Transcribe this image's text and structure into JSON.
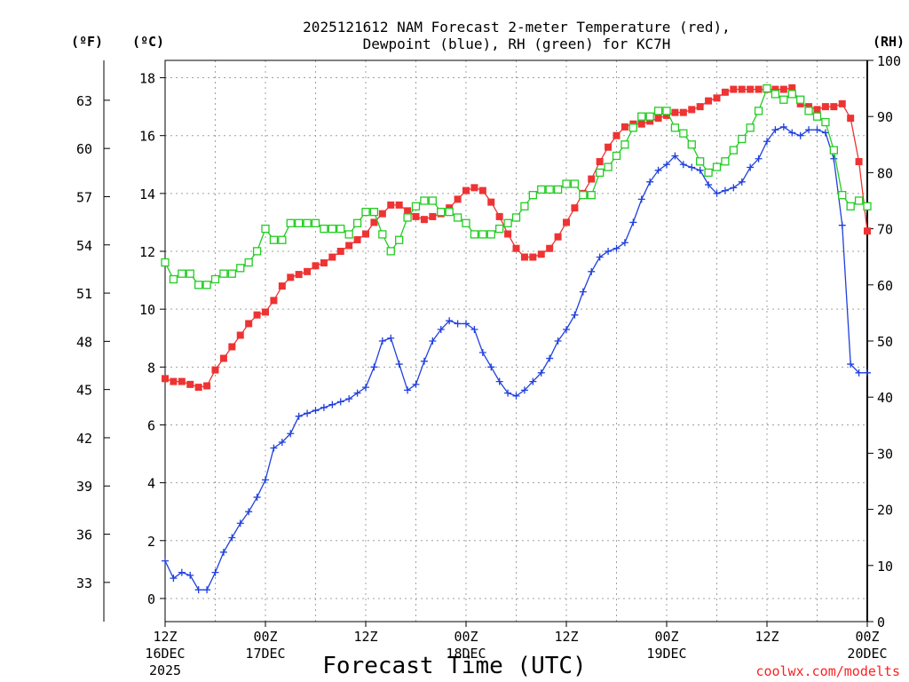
{
  "chart_data": {
    "type": "line",
    "title_line1": "2025121612 NAM Forecast 2-meter Temperature (red),",
    "title_line2": "Dewpoint (blue), RH (green) for KC7H",
    "xlabel": "Forecast Time (UTC)",
    "unit_left_f": "(ºF)",
    "unit_left_c": "(ºC)",
    "unit_right": "(RH)",
    "credit": "coolwx.com/modelts",
    "x_range_hours": [
      0,
      84
    ],
    "x_ticks": [
      {
        "hour": 0,
        "line1": "12Z",
        "line2": "16DEC",
        "line3": "2025"
      },
      {
        "hour": 12,
        "line1": "00Z",
        "line2": "17DEC",
        "line3": ""
      },
      {
        "hour": 24,
        "line1": "12Z",
        "line2": "",
        "line3": ""
      },
      {
        "hour": 36,
        "line1": "00Z",
        "line2": "18DEC",
        "line3": ""
      },
      {
        "hour": 48,
        "line1": "12Z",
        "line2": "",
        "line3": ""
      },
      {
        "hour": 60,
        "line1": "00Z",
        "line2": "19DEC",
        "line3": ""
      },
      {
        "hour": 72,
        "line1": "12Z",
        "line2": "",
        "line3": ""
      },
      {
        "hour": 84,
        "line1": "00Z",
        "line2": "20DEC",
        "line3": ""
      }
    ],
    "y_left_c": {
      "range": [
        -0.8,
        18.6
      ],
      "ticks": [
        0,
        2,
        4,
        6,
        8,
        10,
        12,
        14,
        16,
        18
      ]
    },
    "y_left_f": {
      "ticks": [
        33,
        36,
        39,
        42,
        45,
        48,
        51,
        54,
        57,
        60,
        63
      ]
    },
    "y_right_rh": {
      "range": [
        0,
        100
      ],
      "ticks": [
        0,
        10,
        20,
        30,
        40,
        50,
        60,
        70,
        80,
        90,
        100
      ]
    },
    "grid": true,
    "series": [
      {
        "name": "Temperature (°C)",
        "color": "#ee3333",
        "axis": "c",
        "marker": "filled-square",
        "x": [
          0,
          1,
          2,
          3,
          4,
          5,
          6,
          7,
          8,
          9,
          10,
          11,
          12,
          13,
          14,
          15,
          16,
          17,
          18,
          19,
          20,
          21,
          22,
          23,
          24,
          25,
          26,
          27,
          28,
          29,
          30,
          31,
          32,
          33,
          34,
          35,
          36,
          37,
          38,
          39,
          40,
          41,
          42,
          43,
          44,
          45,
          46,
          47,
          48,
          49,
          50,
          51,
          52,
          53,
          54,
          55,
          56,
          57,
          58,
          59,
          60,
          61,
          62,
          63,
          64,
          65,
          66,
          67,
          68,
          69,
          70,
          71,
          72,
          73,
          74,
          75,
          76,
          77,
          78,
          79,
          80,
          81,
          82,
          83,
          84
        ],
        "values": [
          7.6,
          7.5,
          7.5,
          7.4,
          7.3,
          7.35,
          7.9,
          8.3,
          8.7,
          9.1,
          9.5,
          9.8,
          9.9,
          10.3,
          10.8,
          11.1,
          11.2,
          11.3,
          11.5,
          11.6,
          11.8,
          12.0,
          12.2,
          12.4,
          12.6,
          13.0,
          13.3,
          13.6,
          13.6,
          13.4,
          13.2,
          13.1,
          13.2,
          13.3,
          13.5,
          13.8,
          14.1,
          14.2,
          14.1,
          13.7,
          13.2,
          12.6,
          12.1,
          11.8,
          11.8,
          11.9,
          12.1,
          12.5,
          13.0,
          13.5,
          14.0,
          14.5,
          15.1,
          15.6,
          16.0,
          16.3,
          16.4,
          16.4,
          16.5,
          16.6,
          16.7,
          16.8,
          16.8,
          16.9,
          17.0,
          17.2,
          17.3,
          17.5,
          17.6,
          17.6,
          17.6,
          17.6,
          17.6,
          17.6,
          17.6,
          17.65,
          17.1,
          17.0,
          16.9,
          17.0,
          17.0,
          17.1,
          16.6,
          15.1,
          12.7
        ]
      },
      {
        "name": "Dewpoint (°C)",
        "color": "#2040dd",
        "axis": "c",
        "marker": "plus",
        "x": [
          0,
          1,
          2,
          3,
          4,
          5,
          6,
          7,
          8,
          9,
          10,
          11,
          12,
          13,
          14,
          15,
          16,
          17,
          18,
          19,
          20,
          21,
          22,
          23,
          24,
          25,
          26,
          27,
          28,
          29,
          30,
          31,
          32,
          33,
          34,
          35,
          36,
          37,
          38,
          39,
          40,
          41,
          42,
          43,
          44,
          45,
          46,
          47,
          48,
          49,
          50,
          51,
          52,
          53,
          54,
          55,
          56,
          57,
          58,
          59,
          60,
          61,
          62,
          63,
          64,
          65,
          66,
          67,
          68,
          69,
          70,
          71,
          72,
          73,
          74,
          75,
          76,
          77,
          78,
          79,
          80,
          81,
          82,
          83,
          84
        ],
        "values": [
          1.3,
          0.7,
          0.9,
          0.8,
          0.3,
          0.3,
          0.9,
          1.6,
          2.1,
          2.6,
          3.0,
          3.5,
          4.1,
          5.2,
          5.4,
          5.7,
          6.3,
          6.4,
          6.5,
          6.6,
          6.7,
          6.8,
          6.9,
          7.1,
          7.3,
          8.0,
          8.9,
          9.0,
          8.1,
          7.2,
          7.4,
          8.2,
          8.9,
          9.3,
          9.6,
          9.5,
          9.5,
          9.3,
          8.5,
          8.0,
          7.5,
          7.1,
          7.0,
          7.2,
          7.5,
          7.8,
          8.3,
          8.9,
          9.3,
          9.8,
          10.6,
          11.3,
          11.8,
          12.0,
          12.1,
          12.3,
          13.0,
          13.8,
          14.4,
          14.8,
          15.0,
          15.3,
          15.0,
          14.9,
          14.8,
          14.3,
          14.0,
          14.1,
          14.2,
          14.4,
          14.9,
          15.2,
          15.8,
          16.2,
          16.3,
          16.1,
          16.0,
          16.2,
          16.2,
          16.1,
          15.2,
          12.9,
          8.1,
          7.8,
          7.8
        ]
      },
      {
        "name": "RH (%)",
        "color": "#22cc22",
        "axis": "rh",
        "marker": "open-square",
        "x": [
          0,
          1,
          2,
          3,
          4,
          5,
          6,
          7,
          8,
          9,
          10,
          11,
          12,
          13,
          14,
          15,
          16,
          17,
          18,
          19,
          20,
          21,
          22,
          23,
          24,
          25,
          26,
          27,
          28,
          29,
          30,
          31,
          32,
          33,
          34,
          35,
          36,
          37,
          38,
          39,
          40,
          41,
          42,
          43,
          44,
          45,
          46,
          47,
          48,
          49,
          50,
          51,
          52,
          53,
          54,
          55,
          56,
          57,
          58,
          59,
          60,
          61,
          62,
          63,
          64,
          65,
          66,
          67,
          68,
          69,
          70,
          71,
          72,
          73,
          74,
          75,
          76,
          77,
          78,
          79,
          80,
          81,
          82,
          83,
          84
        ],
        "values": [
          64,
          61,
          62,
          62,
          60,
          60,
          61,
          62,
          62,
          63,
          64,
          66,
          70,
          68,
          68,
          71,
          71,
          71,
          71,
          70,
          70,
          70,
          69,
          71,
          73,
          73,
          69,
          66,
          68,
          72,
          74,
          75,
          75,
          73,
          73,
          72,
          71,
          69,
          69,
          69,
          70,
          71,
          72,
          74,
          76,
          77,
          77,
          77,
          78,
          78,
          76,
          76,
          80,
          81,
          83,
          85,
          88,
          90,
          90,
          91,
          91,
          88,
          87,
          85,
          82,
          80,
          81,
          82,
          84,
          86,
          88,
          91,
          95,
          94,
          93,
          94,
          93,
          91,
          90,
          89,
          84,
          76,
          74,
          75,
          74
        ]
      }
    ]
  }
}
